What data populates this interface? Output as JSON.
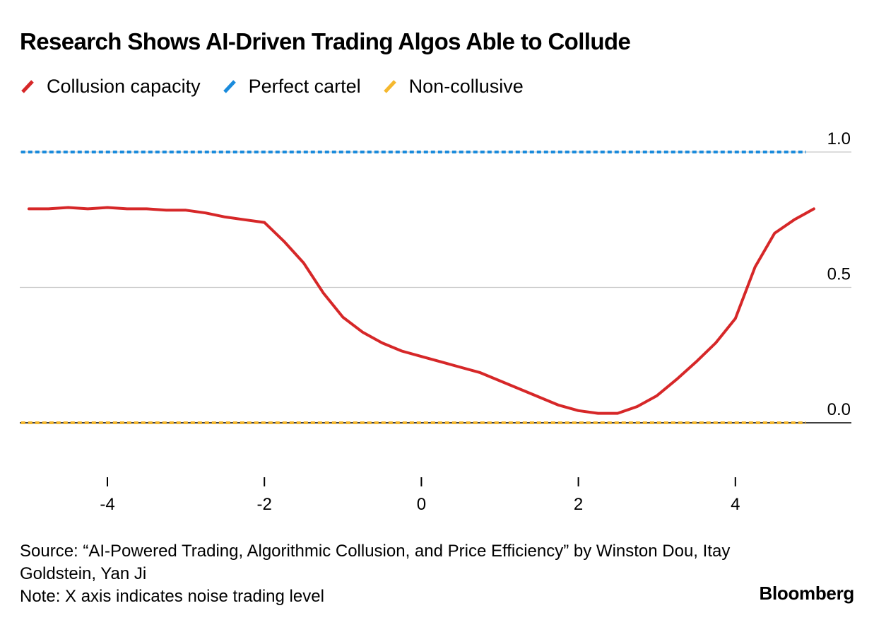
{
  "title": "Research Shows AI-Driven Trading Algos Able to Collude",
  "legend": [
    {
      "label": "Collusion capacity",
      "color": "#d62728"
    },
    {
      "label": "Perfect cartel",
      "color": "#1a8bdc"
    },
    {
      "label": "Non-collusive",
      "color": "#f5b82e"
    }
  ],
  "chart_data": {
    "type": "line",
    "title": "Research Shows AI-Driven Trading Algos Able to Collude",
    "xlabel": "",
    "ylabel": "",
    "xlim": [
      -5.1,
      5.0
    ],
    "ylim": [
      0,
      1
    ],
    "x_ticks": [
      -4,
      -2,
      0,
      2,
      4
    ],
    "x_tick_labels": [
      "-4",
      "-2",
      "0",
      "2",
      "4"
    ],
    "y_ticks": [
      0,
      0.5,
      1
    ],
    "y_tick_labels": [
      "0.0",
      "0.5",
      "1.0"
    ],
    "grid": true,
    "series": [
      {
        "name": "Collusion capacity",
        "color": "#d62728",
        "style": "solid",
        "x": [
          -5.0,
          -4.75,
          -4.5,
          -4.25,
          -4.0,
          -3.75,
          -3.5,
          -3.25,
          -3.0,
          -2.75,
          -2.5,
          -2.25,
          -2.0,
          -1.75,
          -1.5,
          -1.25,
          -1.0,
          -0.75,
          -0.5,
          -0.25,
          0.0,
          0.25,
          0.5,
          0.75,
          1.0,
          1.25,
          1.5,
          1.75,
          2.0,
          2.25,
          2.5,
          2.75,
          3.0,
          3.25,
          3.5,
          3.75,
          4.0,
          4.25,
          4.5,
          4.75,
          5.0
        ],
        "y": [
          0.79,
          0.79,
          0.795,
          0.79,
          0.795,
          0.79,
          0.79,
          0.785,
          0.785,
          0.775,
          0.76,
          0.75,
          0.74,
          0.67,
          0.59,
          0.48,
          0.39,
          0.335,
          0.295,
          0.265,
          0.245,
          0.225,
          0.205,
          0.185,
          0.155,
          0.125,
          0.095,
          0.065,
          0.045,
          0.035,
          0.035,
          0.06,
          0.1,
          0.16,
          0.225,
          0.295,
          0.385,
          0.575,
          0.7,
          0.75,
          0.79
        ]
      },
      {
        "name": "Perfect cartel",
        "color": "#1a8bdc",
        "style": "dotted",
        "x": [
          -5.1,
          4.9
        ],
        "y": [
          1.0,
          1.0
        ]
      },
      {
        "name": "Non-collusive",
        "color": "#f5b82e",
        "style": "dotted",
        "x": [
          -5.1,
          4.9
        ],
        "y": [
          0.0,
          0.0
        ]
      }
    ]
  },
  "footer": {
    "source": "Source: “AI-Powered Trading, Algorithmic Collusion, and Price Efficiency” by Winston Dou, Itay Goldstein, Yan Ji",
    "note": "Note: X axis indicates noise trading level"
  },
  "brand": "Bloomberg"
}
